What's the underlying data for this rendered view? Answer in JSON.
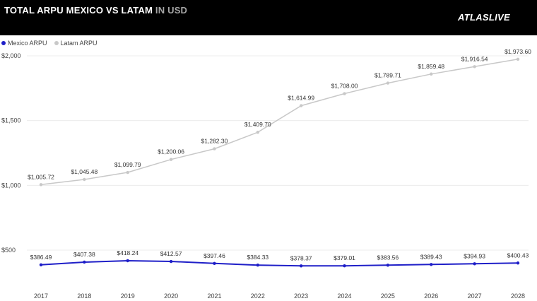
{
  "header": {
    "title_main": "TOTAL ARPU MEXICO VS LATAM",
    "title_unit": " IN USD",
    "brand": "ATLASLIVE"
  },
  "colors": {
    "mexico": "#1f1fc8",
    "latam": "#c8c8c8",
    "header_bg": "#000000",
    "title_highlight": "#a6a6a6"
  },
  "chart_data": {
    "type": "line",
    "title": "TOTAL ARPU MEXICO VS LATAM IN USD",
    "xlabel": "",
    "ylabel": "",
    "x": [
      "2017",
      "2018",
      "2019",
      "2020",
      "2021",
      "2022",
      "2023",
      "2024",
      "2025",
      "2026",
      "2027",
      "2028"
    ],
    "ylim": [
      350,
      2000
    ],
    "y_ticks": [
      500,
      1000,
      1500,
      2000
    ],
    "y_tick_labels": [
      "$500",
      "$1,000",
      "$1,500",
      "$2,000"
    ],
    "grid": true,
    "legend": "top-left",
    "series": [
      {
        "name": "Mexico ARPU",
        "values": [
          386.49,
          407.38,
          418.24,
          412.57,
          397.46,
          384.33,
          378.37,
          379.01,
          383.56,
          389.43,
          394.93,
          400.43
        ],
        "labels": [
          "$386.49",
          "$407.38",
          "$418.24",
          "$412.57",
          "$397.46",
          "$384.33",
          "$378.37",
          "$379.01",
          "$383.56",
          "$389.43",
          "$394.93",
          "$400.43"
        ]
      },
      {
        "name": "Latam ARPU",
        "values": [
          1005.72,
          1045.48,
          1099.79,
          1200.06,
          1282.3,
          1409.7,
          1614.99,
          1708.0,
          1789.71,
          1859.48,
          1916.54,
          1973.6
        ],
        "labels": [
          "$1,005.72",
          "$1,045.48",
          "$1,099.79",
          "$1,200.06",
          "$1,282.30",
          "$1,409.70",
          "$1,614.99",
          "$1,708.00",
          "$1,789.71",
          "$1,859.48",
          "$1,916.54",
          "$1,973.60"
        ]
      }
    ]
  }
}
